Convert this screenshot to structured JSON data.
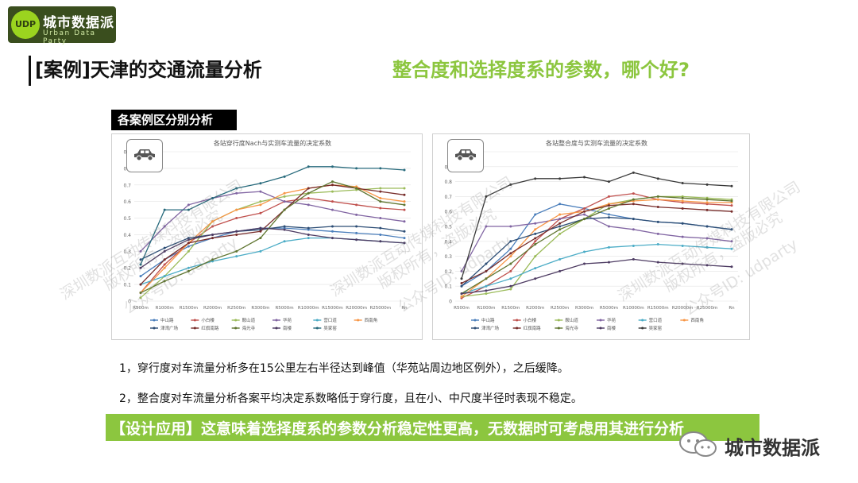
{
  "brand": {
    "name": "城市数据派",
    "sub": "Urban Data Party",
    "badge": "UDP"
  },
  "slide": {
    "title": "[案例]天津的交通流量分析",
    "question": "整合度和选择度系的参数，哪个好?",
    "section_label": "各案例区分别分析",
    "points": [
      "1，穿行度对车流量分析多在15公里左右半径达到峰值（华苑站周边地区例外），之后缓降。",
      "2，整合度对车流量分析各案平均决定系数略低于穿行度，且在小、中尺度半径时表现不稳定。"
    ],
    "banner": "【设计应用】这意味着选择度系的参数分析稳定性更高，无数据时可考虑用其进行分析",
    "wechat_name": "城市数据派"
  },
  "watermarks": [
    "深圳数派互动传媒科技有限公司",
    "版权所有，盗版必究",
    "公众号ID: udparty"
  ],
  "colors": {
    "accent": "#8cc63f",
    "logo_bg": "#3a4e1e"
  },
  "chart_data": [
    {
      "type": "line",
      "title": "各站穿行度Nach与实测车流量的决定系数",
      "ylim": [
        0,
        0.9
      ],
      "yticks": [
        0,
        0.1,
        0.2,
        0.3,
        0.4,
        0.5,
        0.6,
        0.7,
        0.8,
        0.9
      ],
      "categories": [
        "R500m",
        "R1000m",
        "R1500m",
        "R2000m",
        "R2500m",
        "R3000m",
        "R5000m",
        "R10000m",
        "R15000m",
        "R20000m",
        "R25000m",
        "Rn"
      ],
      "legend_position": "bottom",
      "series": [
        {
          "name": "中山路",
          "color": "#4a7ebb",
          "values": [
            0.15,
            0.25,
            0.33,
            0.38,
            0.42,
            0.44,
            0.44,
            0.43,
            0.42,
            0.41,
            0.4,
            0.38
          ]
        },
        {
          "name": "小白楼",
          "color": "#c0504d",
          "values": [
            0.05,
            0.22,
            0.35,
            0.45,
            0.5,
            0.53,
            0.6,
            0.62,
            0.6,
            0.58,
            0.56,
            0.55
          ]
        },
        {
          "name": "鞍山道",
          "color": "#9bbb59",
          "values": [
            0.02,
            0.15,
            0.3,
            0.48,
            0.55,
            0.6,
            0.63,
            0.65,
            0.66,
            0.67,
            0.68,
            0.68
          ]
        },
        {
          "name": "华苑",
          "color": "#8064a2",
          "values": [
            0.3,
            0.45,
            0.58,
            0.62,
            0.65,
            0.66,
            0.6,
            0.58,
            0.55,
            0.52,
            0.5,
            0.48
          ]
        },
        {
          "name": "营口道",
          "color": "#4bacc6",
          "values": [
            0.1,
            0.15,
            0.2,
            0.24,
            0.27,
            0.3,
            0.36,
            0.38,
            0.38,
            0.37,
            0.36,
            0.35
          ]
        },
        {
          "name": "西南角",
          "color": "#f79646",
          "values": [
            0.05,
            0.2,
            0.35,
            0.48,
            0.55,
            0.58,
            0.65,
            0.68,
            0.7,
            0.69,
            0.62,
            0.6
          ]
        },
        {
          "name": "津湾广场",
          "color": "#2c4d75",
          "values": [
            0.25,
            0.32,
            0.38,
            0.4,
            0.42,
            0.43,
            0.45,
            0.44,
            0.45,
            0.45,
            0.44,
            0.42
          ]
        },
        {
          "name": "红旗南路",
          "color": "#772c2a",
          "values": [
            0.1,
            0.25,
            0.35,
            0.38,
            0.4,
            0.42,
            0.55,
            0.68,
            0.7,
            0.68,
            0.66,
            0.64
          ]
        },
        {
          "name": "海光寺",
          "color": "#5f7530",
          "values": [
            0.05,
            0.12,
            0.18,
            0.25,
            0.3,
            0.38,
            0.55,
            0.65,
            0.72,
            0.68,
            0.6,
            0.58
          ]
        },
        {
          "name": "南楼",
          "color": "#4d3b62",
          "values": [
            0.2,
            0.3,
            0.37,
            0.4,
            0.42,
            0.44,
            0.43,
            0.4,
            0.38,
            0.37,
            0.36,
            0.35
          ]
        },
        {
          "name": "吴家窑",
          "color": "#276a7c",
          "values": [
            0.22,
            0.55,
            0.55,
            0.62,
            0.68,
            0.71,
            0.75,
            0.81,
            0.81,
            0.8,
            0.8,
            0.79
          ]
        }
      ]
    },
    {
      "type": "line",
      "title": "各站整合度与实测车流量的决定系数",
      "ylim": [
        0,
        1
      ],
      "yticks": [
        0,
        0.1,
        0.2,
        0.3,
        0.4,
        0.5,
        0.6,
        0.7,
        0.8,
        0.9,
        1
      ],
      "categories": [
        "R500m",
        "R1000m",
        "R1500m",
        "R2000m",
        "R2500m",
        "R3000m",
        "R5000m",
        "R10000m",
        "R15000m",
        "R20000m",
        "R25000m",
        "Rn"
      ],
      "legend_position": "bottom",
      "series": [
        {
          "name": "中山路",
          "color": "#4a7ebb",
          "values": [
            0.1,
            0.2,
            0.35,
            0.58,
            0.65,
            0.62,
            0.58,
            0.55,
            0.53,
            0.52,
            0.5,
            0.48
          ]
        },
        {
          "name": "小白楼",
          "color": "#c0504d",
          "values": [
            0.02,
            0.1,
            0.2,
            0.4,
            0.55,
            0.62,
            0.7,
            0.72,
            0.68,
            0.66,
            0.65,
            0.64
          ]
        },
        {
          "name": "鞍山道",
          "color": "#9bbb59",
          "values": [
            0.03,
            0.05,
            0.08,
            0.3,
            0.45,
            0.55,
            0.65,
            0.68,
            0.7,
            0.7,
            0.69,
            0.68
          ]
        },
        {
          "name": "华苑",
          "color": "#8064a2",
          "values": [
            0.2,
            0.5,
            0.5,
            0.52,
            0.55,
            0.58,
            0.5,
            0.48,
            0.45,
            0.43,
            0.42,
            0.4
          ]
        },
        {
          "name": "营口道",
          "color": "#4bacc6",
          "values": [
            0.05,
            0.1,
            0.15,
            0.22,
            0.28,
            0.33,
            0.36,
            0.37,
            0.38,
            0.37,
            0.36,
            0.35
          ]
        },
        {
          "name": "西南角",
          "color": "#f79646",
          "values": [
            0.03,
            0.15,
            0.3,
            0.48,
            0.58,
            0.6,
            0.65,
            0.67,
            0.68,
            0.67,
            0.66,
            0.66
          ]
        },
        {
          "name": "津湾广场",
          "color": "#2c4d75",
          "values": [
            0.1,
            0.25,
            0.4,
            0.45,
            0.5,
            0.55,
            0.56,
            0.55,
            0.53,
            0.52,
            0.5,
            0.48
          ]
        },
        {
          "name": "红旗南路",
          "color": "#772c2a",
          "values": [
            0.12,
            0.2,
            0.32,
            0.42,
            0.52,
            0.6,
            0.64,
            0.65,
            0.63,
            0.62,
            0.61,
            0.6
          ]
        },
        {
          "name": "海光寺",
          "color": "#5f7530",
          "values": [
            0.05,
            0.15,
            0.25,
            0.38,
            0.48,
            0.55,
            0.62,
            0.68,
            0.7,
            0.69,
            0.68,
            0.67
          ]
        },
        {
          "name": "南楼",
          "color": "#4d3b62",
          "values": [
            0.05,
            0.07,
            0.1,
            0.15,
            0.2,
            0.25,
            0.26,
            0.28,
            0.26,
            0.25,
            0.24,
            0.23
          ]
        },
        {
          "name": "吴家窑",
          "color": "#3a3a3a",
          "values": [
            0.15,
            0.7,
            0.78,
            0.82,
            0.82,
            0.83,
            0.8,
            0.86,
            0.82,
            0.79,
            0.78,
            0.77
          ]
        }
      ]
    }
  ]
}
